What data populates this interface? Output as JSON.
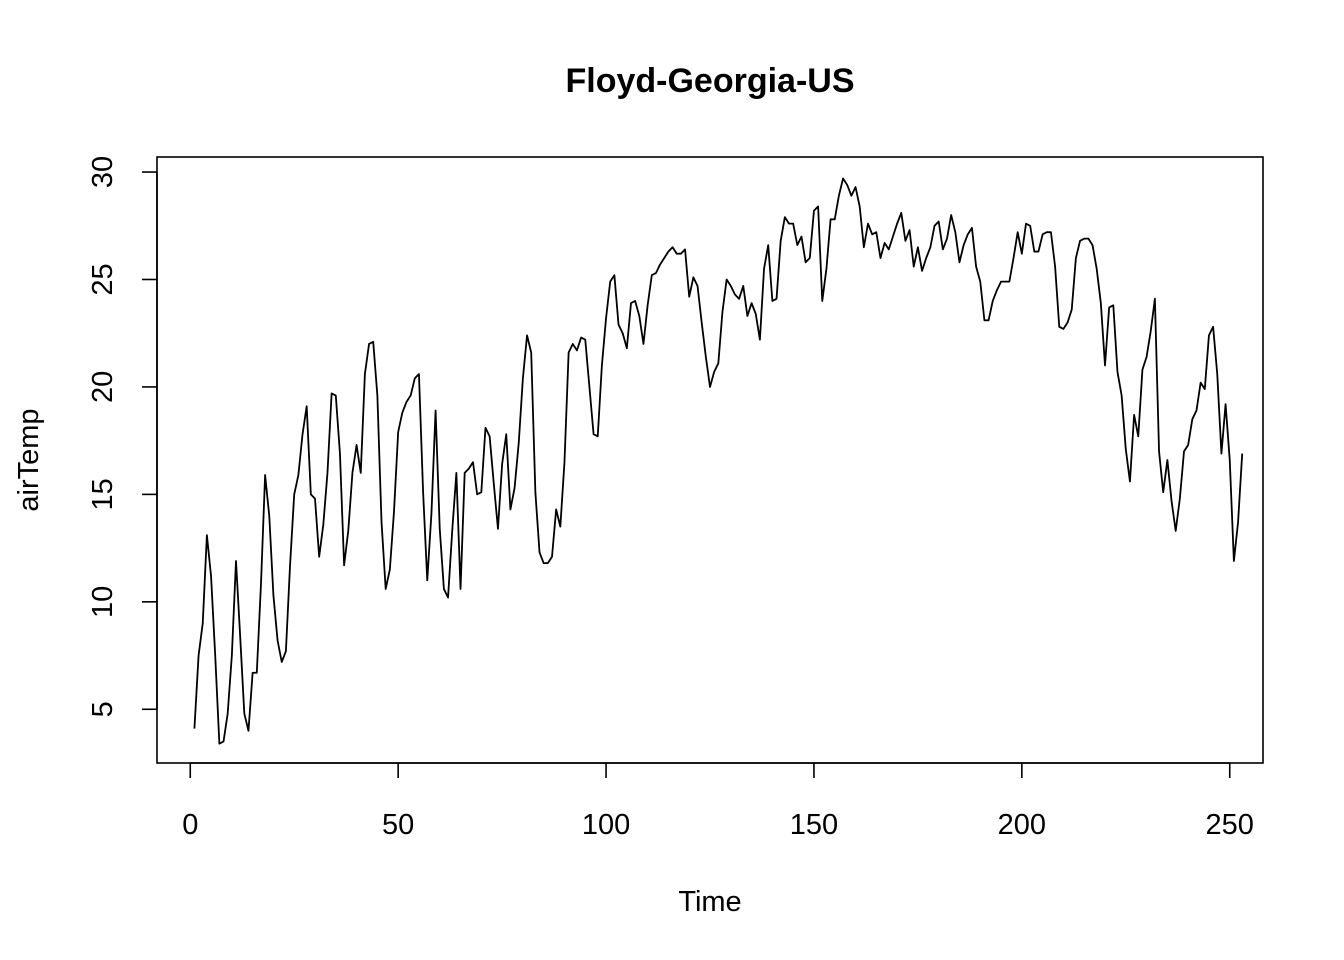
{
  "chart_data": {
    "type": "line",
    "title": "Floyd-Georgia-US",
    "xlabel": "Time",
    "ylabel": "airTemp",
    "xlim": [
      -8,
      258
    ],
    "ylim": [
      2.5,
      30.7
    ],
    "xticks": [
      0,
      50,
      100,
      150,
      200,
      250
    ],
    "yticks": [
      5,
      10,
      15,
      20,
      25,
      30
    ],
    "grid": false,
    "legend": "none",
    "series": [
      {
        "color": "#000000",
        "x_start": 1,
        "values": [
          4.1,
          7.5,
          9.0,
          13.1,
          11.2,
          7.5,
          3.4,
          3.5,
          4.8,
          7.5,
          11.9,
          8.4,
          4.8,
          4.0,
          6.7,
          6.7,
          10.8,
          15.9,
          14.0,
          10.3,
          8.2,
          7.2,
          7.7,
          11.7,
          15.0,
          15.9,
          17.8,
          19.1,
          15.0,
          14.8,
          12.1,
          13.6,
          16.0,
          19.7,
          19.6,
          16.9,
          11.7,
          13.3,
          16.0,
          17.3,
          16.0,
          20.6,
          22.0,
          22.1,
          19.6,
          13.7,
          10.6,
          11.5,
          14.2,
          17.9,
          18.8,
          19.3,
          19.6,
          20.4,
          20.6,
          15.1,
          11.0,
          14.1,
          18.9,
          13.4,
          10.6,
          10.2,
          13.3,
          16.0,
          10.6,
          16.0,
          16.2,
          16.5,
          15.0,
          15.1,
          18.1,
          17.7,
          15.5,
          13.4,
          16.4,
          17.8,
          14.3,
          15.3,
          17.4,
          20.4,
          22.4,
          21.6,
          15.1,
          12.3,
          11.8,
          11.8,
          12.1,
          14.3,
          13.5,
          16.5,
          21.6,
          22.0,
          21.7,
          22.3,
          22.2,
          20.0,
          17.8,
          17.7,
          21.0,
          23.2,
          24.9,
          25.2,
          22.9,
          22.5,
          21.8,
          23.9,
          24.0,
          23.3,
          22.0,
          23.8,
          25.2,
          25.3,
          25.7,
          26.0,
          26.3,
          26.5,
          26.2,
          26.2,
          26.4,
          24.2,
          25.1,
          24.7,
          23.0,
          21.4,
          20.0,
          20.7,
          21.1,
          23.5,
          25.0,
          24.7,
          24.3,
          24.1,
          24.7,
          23.3,
          23.9,
          23.4,
          22.2,
          25.5,
          26.6,
          24.0,
          24.1,
          26.8,
          27.9,
          27.6,
          27.6,
          26.6,
          27.0,
          25.8,
          26.0,
          28.2,
          28.4,
          24.0,
          25.5,
          27.8,
          27.8,
          28.9,
          29.7,
          29.4,
          28.9,
          29.3,
          28.4,
          26.5,
          27.6,
          27.1,
          27.2,
          26.0,
          26.7,
          26.4,
          27.0,
          27.6,
          28.1,
          26.8,
          27.3,
          25.6,
          26.5,
          25.4,
          26.0,
          26.5,
          27.5,
          27.7,
          26.4,
          26.9,
          28.0,
          27.2,
          25.8,
          26.6,
          27.1,
          27.4,
          25.6,
          24.9,
          23.1,
          23.1,
          24.0,
          24.5,
          24.9,
          24.9,
          24.9,
          26.0,
          27.2,
          26.2,
          27.6,
          27.5,
          26.3,
          26.3,
          27.1,
          27.2,
          27.2,
          25.6,
          22.8,
          22.7,
          23.0,
          23.6,
          26.0,
          26.8,
          26.9,
          26.9,
          26.6,
          25.5,
          23.9,
          21.0,
          23.7,
          23.8,
          20.7,
          19.6,
          17.1,
          15.6,
          18.7,
          17.7,
          20.8,
          21.4,
          22.6,
          24.1,
          17.0,
          15.1,
          16.6,
          14.7,
          13.3,
          14.8,
          17.0,
          17.3,
          18.5,
          18.9,
          20.2,
          19.9,
          22.4,
          22.8,
          20.6,
          16.9,
          19.2,
          16.6,
          11.9,
          13.7,
          16.9
        ]
      }
    ]
  }
}
